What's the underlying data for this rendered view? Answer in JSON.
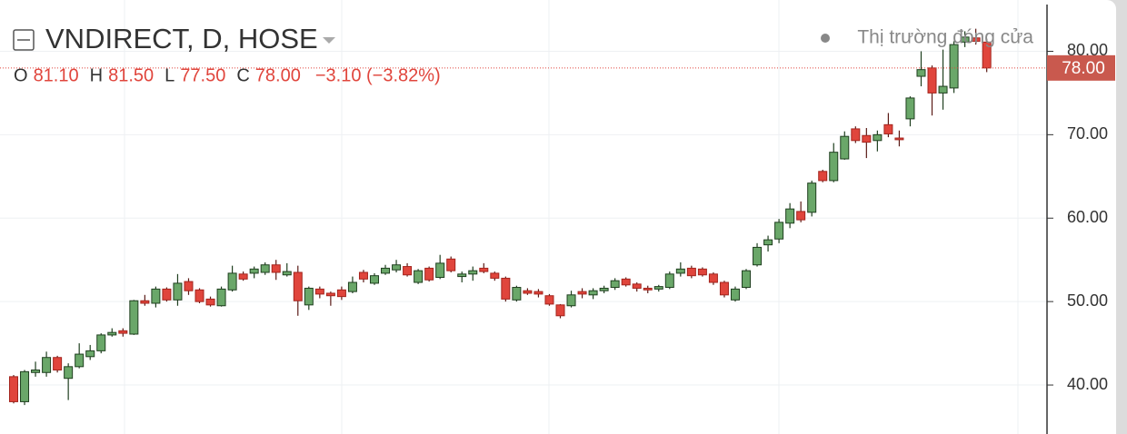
{
  "chart_data": {
    "type": "candlestick",
    "title": "VNDIRECT, D, HOSE",
    "status": "Thị trường đóng cửa",
    "ohlc_legend": [
      {
        "key": "O",
        "value": "81.10"
      },
      {
        "key": "H",
        "value": "81.50"
      },
      {
        "key": "L",
        "value": "77.50"
      },
      {
        "key": "C",
        "value": "78.00"
      }
    ],
    "change": "−3.10 (−3.82%)",
    "last_price_label": "78.00",
    "up_color": "#6aa769",
    "down_color": "#e0453c",
    "open": [
      41,
      38,
      41.5,
      41.5,
      43.3,
      40.8,
      42.2,
      43.4,
      44.1,
      46,
      46.5,
      46.1,
      50.1,
      49.8,
      51.5,
      50.2,
      52.4,
      51.4,
      50.3,
      49.5,
      51.4,
      53.3,
      53.4,
      53.5,
      54.4,
      53.2,
      53.5,
      49.6,
      51.5,
      51,
      51.4,
      51.2,
      53.5,
      52.2,
      53.4,
      53.8,
      54.2,
      52.3,
      54,
      52.9,
      55.1,
      53,
      53.3,
      54,
      53.4,
      52.8,
      50.2,
      51.3,
      51.2,
      50.7,
      49.6,
      49.5,
      51.2,
      50.8,
      51.3,
      51.7,
      52.7,
      52.1,
      51.6,
      51.5,
      51.7,
      53.4,
      54,
      53.9,
      53.3,
      52.3,
      50.2,
      51.7,
      54.4,
      56.8,
      57.5,
      59.4,
      60.8,
      60.7,
      65.6,
      64.5,
      67.1,
      70.7,
      69.9,
      69.3,
      71.2,
      69.6,
      71.9,
      77,
      78,
      75,
      75.6,
      81.1,
      81.6,
      81.1
    ],
    "high": [
      41.2,
      41.8,
      42.8,
      44,
      43.5,
      42.6,
      45,
      44.8,
      46.2,
      46.8,
      46.8,
      50.2,
      50.8,
      51.8,
      51.7,
      53.3,
      52.8,
      51.6,
      50.6,
      51.8,
      54.3,
      53.6,
      54.2,
      54.7,
      55,
      54.6,
      54.3,
      51.8,
      51.8,
      51.2,
      51.8,
      53,
      53.8,
      53.4,
      54.4,
      55,
      54.6,
      53.9,
      54.2,
      55.6,
      55.4,
      53.6,
      54.2,
      54.6,
      53.6,
      53,
      51.9,
      51.6,
      51.5,
      50.9,
      49.7,
      51.3,
      51.6,
      51.6,
      51.9,
      52.8,
      52.9,
      52.3,
      51.9,
      52,
      53.6,
      54.7,
      54.3,
      54.1,
      53.5,
      52.5,
      51.8,
      53.9,
      57,
      57.9,
      59.9,
      61.8,
      62,
      64.5,
      65.8,
      69,
      70.4,
      71,
      70.8,
      70.5,
      72.6,
      70.5,
      74.6,
      80,
      78.3,
      80.2,
      81.2,
      82.4,
      82.7,
      81.5
    ],
    "low": [
      37.8,
      37.6,
      41,
      41,
      41.5,
      38.2,
      42,
      43,
      43.8,
      45.8,
      45.8,
      46,
      49.5,
      49.3,
      50,
      49.5,
      50.8,
      49.8,
      49.4,
      49.4,
      51.2,
      52.5,
      52.8,
      53.2,
      52.6,
      53,
      48.3,
      49,
      50.4,
      49.5,
      50.2,
      51,
      52.3,
      52,
      53.2,
      53.5,
      53,
      52.1,
      52.4,
      52.7,
      53.5,
      52.3,
      52.5,
      53.4,
      52.5,
      50,
      50,
      50.8,
      50.5,
      49.5,
      48,
      49.3,
      50.4,
      50.3,
      51,
      51.4,
      51.8,
      51.2,
      51,
      51.2,
      51.5,
      53,
      52.8,
      53,
      52,
      50.5,
      50,
      51.5,
      54.2,
      56,
      57,
      58.8,
      59.5,
      60.2,
      64.3,
      64.3,
      67,
      69,
      67.2,
      68,
      69.7,
      68.6,
      71,
      75.8,
      72.3,
      73,
      75,
      80.5,
      80.8,
      77.5
    ],
    "close": [
      38,
      41.6,
      41.8,
      43.3,
      41.8,
      42.2,
      43.7,
      44.1,
      46,
      46.3,
      46.2,
      50.1,
      49.8,
      51.5,
      50.2,
      52.2,
      51.3,
      50,
      49.6,
      51.5,
      53.4,
      52.7,
      53.9,
      54.4,
      53.5,
      53.6,
      50.1,
      51.6,
      50.9,
      50.7,
      50.6,
      52.3,
      52.7,
      53.1,
      54,
      54.4,
      53.2,
      53.7,
      52.6,
      54.6,
      53.7,
      53.3,
      53.7,
      53.6,
      52.8,
      50.3,
      51.7,
      51,
      50.9,
      49.7,
      48.3,
      50.8,
      50.9,
      51.3,
      51.6,
      52.5,
      52,
      51.6,
      51.4,
      51.8,
      53.3,
      53.9,
      53.1,
      53.2,
      52.3,
      50.8,
      51.5,
      53.7,
      56.5,
      57.4,
      59.5,
      61.1,
      59.8,
      64.2,
      64.5,
      67.9,
      69.8,
      69.3,
      69.1,
      70,
      70.1,
      69.4,
      74.4,
      77.8,
      75,
      75.8,
      80.8,
      81.7,
      81.2,
      78
    ],
    "ylim": [
      35,
      85.6
    ],
    "yticks": [
      {
        "value": 40,
        "label": "40.00"
      },
      {
        "value": 50,
        "label": "50.00"
      },
      {
        "value": 60,
        "label": "60.00"
      },
      {
        "value": 70,
        "label": "70.00"
      },
      {
        "value": 80,
        "label": "80.00"
      }
    ],
    "grid": true
  }
}
